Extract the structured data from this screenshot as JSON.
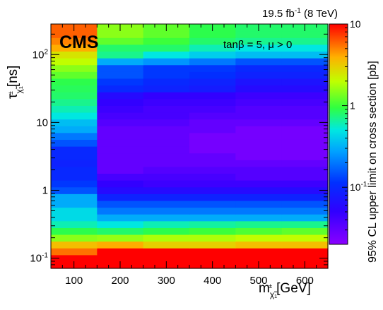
{
  "chart_data": {
    "type": "heatmap",
    "lumi": "19.5 fb",
    "lumi_sup": "-1",
    "energy": " (8 TeV)",
    "experiment": "CMS",
    "annotation": {
      "text1": "tanβ = 5, μ > 0"
    },
    "xlabel": "m",
    "xlabel_sub": "χ̃₁",
    "xlabel_sup": "±",
    "xlabel_unit": "[GeV]",
    "ylabel": "τ",
    "ylabel_sub": "χ̃₁",
    "ylabel_sup": "±",
    "ylabel_unit": "[ns]",
    "zlabel": "95% CL upper limit on cross section [pb]",
    "x_ticks": [
      "100",
      "200",
      "300",
      "400",
      "500",
      "600"
    ],
    "x_tick_values": [
      100,
      200,
      300,
      400,
      500,
      600
    ],
    "xlim": [
      50,
      650
    ],
    "ylim_log10": [
      -1.15,
      2.45
    ],
    "y_ticks": [
      {
        "base": "10",
        "exp": "-1",
        "value": 0.1
      },
      {
        "base": "1",
        "exp": "",
        "value": 1
      },
      {
        "base": "10",
        "exp": "",
        "value": 10
      },
      {
        "base": "10",
        "exp": "2",
        "value": 100
      }
    ],
    "z_ticks": [
      {
        "base": "10",
        "exp": "-1",
        "value": 0.1
      },
      {
        "base": "1",
        "exp": "",
        "value": 1
      },
      {
        "base": "10",
        "exp": "",
        "value": 10
      }
    ],
    "zlim": [
      0.02,
      10
    ],
    "x_bin_edges": [
      50,
      150,
      250,
      350,
      450,
      550,
      650
    ],
    "y_bin_edges": [
      0.0708,
      0.0891,
      0.1122,
      0.1413,
      0.1778,
      0.2239,
      0.2818,
      0.3548,
      0.4467,
      0.5623,
      0.7079,
      0.8913,
      1.122,
      1.413,
      1.778,
      2.239,
      2.818,
      3.548,
      4.467,
      5.623,
      7.079,
      8.913,
      11.22,
      14.13,
      17.78,
      22.39,
      28.18,
      35.48,
      44.67,
      56.23,
      70.79,
      89.13,
      112.2,
      141.3,
      177.8,
      223.9,
      281.8
    ],
    "z_values": [
      [
        10,
        10,
        10,
        10,
        10,
        10
      ],
      [
        10,
        10,
        10,
        10,
        10,
        10
      ],
      [
        5.5,
        10,
        10,
        10,
        10,
        10
      ],
      [
        3.5,
        4.0,
        3.0,
        3.0,
        3.5,
        3.5
      ],
      [
        1.5,
        1.6,
        1.8,
        1.8,
        2.0,
        2.0
      ],
      [
        0.9,
        0.8,
        0.9,
        1.0,
        1.1,
        1.2
      ],
      [
        0.6,
        0.5,
        0.6,
        0.65,
        0.7,
        0.7
      ],
      [
        0.45,
        0.3,
        0.3,
        0.3,
        0.3,
        0.3
      ],
      [
        0.45,
        0.2,
        0.2,
        0.2,
        0.2,
        0.2
      ],
      [
        0.3,
        0.15,
        0.15,
        0.15,
        0.15,
        0.15
      ],
      [
        0.3,
        0.09,
        0.09,
        0.09,
        0.09,
        0.09
      ],
      [
        0.15,
        0.06,
        0.06,
        0.06,
        0.06,
        0.06
      ],
      [
        0.12,
        0.05,
        0.045,
        0.045,
        0.045,
        0.045
      ],
      [
        0.1,
        0.04,
        0.04,
        0.04,
        0.035,
        0.035
      ],
      [
        0.1,
        0.03,
        0.035,
        0.035,
        0.035,
        0.035
      ],
      [
        0.09,
        0.03,
        0.03,
        0.03,
        0.03,
        0.03
      ],
      [
        0.1,
        0.03,
        0.03,
        0.03,
        0.025,
        0.025
      ],
      [
        0.1,
        0.03,
        0.03,
        0.025,
        0.025,
        0.025
      ],
      [
        0.15,
        0.03,
        0.03,
        0.025,
        0.025,
        0.025
      ],
      [
        0.2,
        0.03,
        0.03,
        0.025,
        0.025,
        0.025
      ],
      [
        0.3,
        0.03,
        0.03,
        0.03,
        0.025,
        0.025
      ],
      [
        0.35,
        0.035,
        0.035,
        0.03,
        0.03,
        0.03
      ],
      [
        0.5,
        0.04,
        0.04,
        0.035,
        0.035,
        0.035
      ],
      [
        0.6,
        0.045,
        0.04,
        0.04,
        0.035,
        0.035
      ],
      [
        0.7,
        0.05,
        0.045,
        0.045,
        0.04,
        0.04
      ],
      [
        0.8,
        0.06,
        0.05,
        0.05,
        0.045,
        0.045
      ],
      [
        0.85,
        0.1,
        0.09,
        0.08,
        0.06,
        0.06
      ],
      [
        0.9,
        0.12,
        0.1,
        0.09,
        0.07,
        0.07
      ],
      [
        1.2,
        0.15,
        0.12,
        0.11,
        0.09,
        0.09
      ],
      [
        1.5,
        0.15,
        0.12,
        0.12,
        0.1,
        0.1
      ],
      [
        2.0,
        0.3,
        0.25,
        0.2,
        0.15,
        0.15
      ],
      [
        2.5,
        0.7,
        0.5,
        0.4,
        0.35,
        0.35
      ],
      [
        4.0,
        0.8,
        0.8,
        0.6,
        0.5,
        0.5
      ],
      [
        5.0,
        1.2,
        1.0,
        0.8,
        0.7,
        0.7
      ],
      [
        6.0,
        1.5,
        1.2,
        0.9,
        0.8,
        0.8
      ],
      [
        6.0,
        1.5,
        1.2,
        0.9,
        0.8,
        0.8
      ]
    ]
  }
}
